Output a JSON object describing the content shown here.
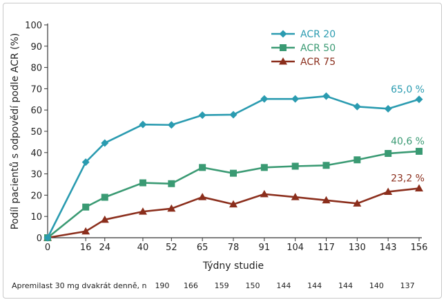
{
  "chart_data": {
    "type": "line",
    "xlabel": "Týdny studie",
    "ylabel": "Podíl pacientů s odpovědí podle ACR (%)",
    "ylim": [
      0,
      100
    ],
    "yticks": [
      0,
      10,
      20,
      30,
      40,
      50,
      60,
      70,
      80,
      90,
      100
    ],
    "x": [
      0,
      16,
      24,
      40,
      52,
      65,
      78,
      91,
      104,
      117,
      130,
      143,
      156
    ],
    "xtick_labels": [
      "0",
      "16",
      "24",
      "40",
      "52",
      "65",
      "78",
      "91",
      "104",
      "117",
      "130",
      "143",
      "156"
    ],
    "series": [
      {
        "name": "ACR 20",
        "color": "#2a9bb0",
        "marker": "diamond",
        "values": [
          0,
          35.5,
          44.5,
          53.2,
          53.0,
          57.6,
          57.8,
          65.2,
          65.2,
          66.5,
          61.6,
          60.6,
          65.0
        ]
      },
      {
        "name": "ACR 50",
        "color": "#3a9a73",
        "marker": "square",
        "values": [
          0,
          14.4,
          19.0,
          25.8,
          25.4,
          33.0,
          30.3,
          33.0,
          33.6,
          34.0,
          36.6,
          39.6,
          40.6
        ]
      },
      {
        "name": "ACR 75",
        "color": "#8b2e1c",
        "marker": "triangle",
        "values": [
          0,
          3.0,
          8.5,
          12.3,
          13.7,
          19.1,
          15.7,
          20.5,
          19.1,
          17.6,
          16.1,
          21.6,
          23.2
        ]
      }
    ],
    "annotations": [
      {
        "series": "ACR 20",
        "text": "65,0 %"
      },
      {
        "series": "ACR 50",
        "text": "40,6 %"
      },
      {
        "series": "ACR 75",
        "text": "23,2 %"
      }
    ],
    "legend": "top-center",
    "grid": false,
    "n_row": {
      "label": "Apremilast 30 mg dvakrát denně, n",
      "entries": [
        {
          "week": 40,
          "n": "190"
        },
        {
          "week": 52,
          "n": "166"
        },
        {
          "week": 65,
          "n": "159"
        },
        {
          "week": 78,
          "n": "150"
        },
        {
          "week": 91,
          "n": "144"
        },
        {
          "week": 104,
          "n": "144"
        },
        {
          "week": 117,
          "n": "144"
        },
        {
          "week": 130,
          "n": "140"
        },
        {
          "week": 143,
          "n": "137"
        }
      ]
    }
  }
}
